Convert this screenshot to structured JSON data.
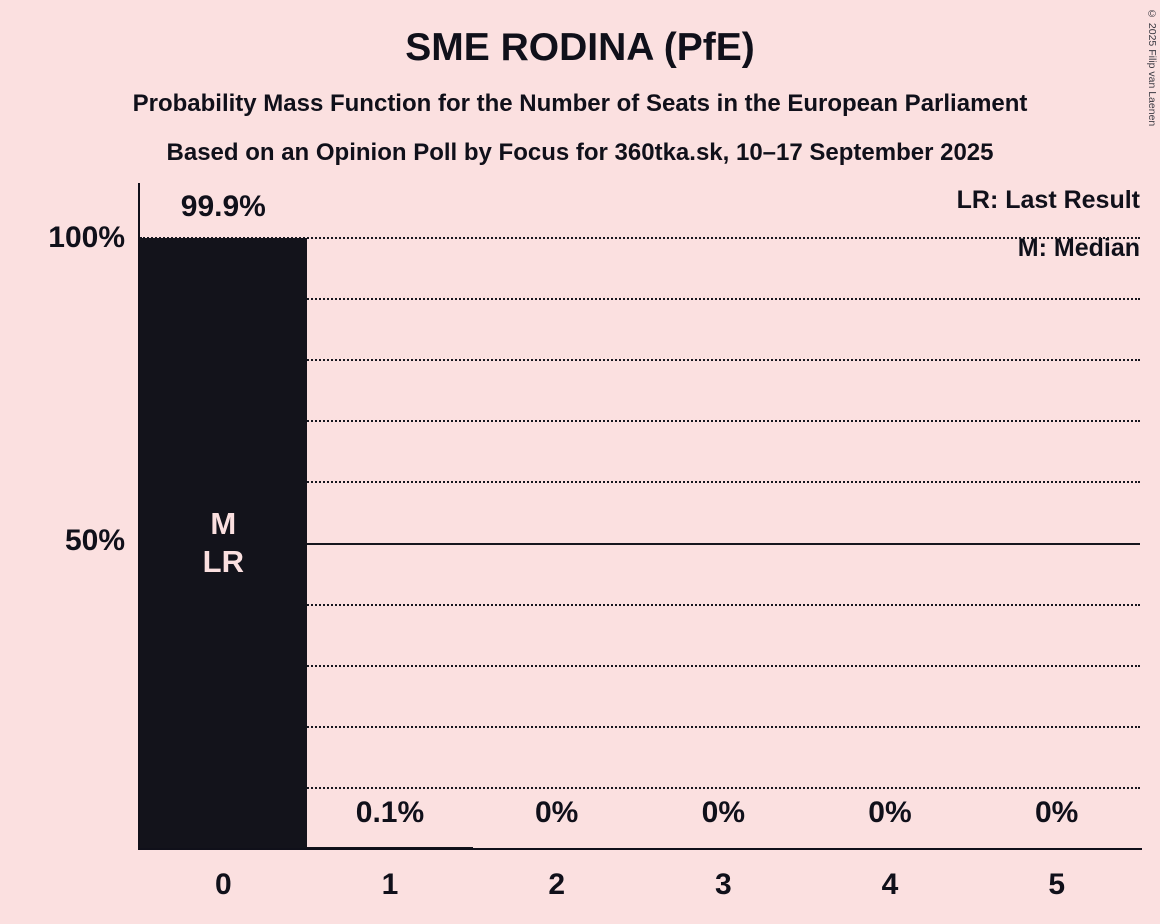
{
  "title": "SME RODINA (PfE)",
  "subtitle1": "Probability Mass Function for the Number of Seats in the European Parliament",
  "subtitle2": "Based on an Opinion Poll by Focus for 360tka.sk, 10–17 September 2025",
  "legend": {
    "lr": "LR: Last Result",
    "m": "M: Median"
  },
  "copyright": "© 2025 Filip van Laenen",
  "colors": {
    "background": "#fbe0e0",
    "bar": "#13131b",
    "text": "#10101a",
    "bar_annotation_text": "#fbe0e0"
  },
  "y_axis": {
    "labels": [
      {
        "text": "100%",
        "value": 100
      },
      {
        "text": "50%",
        "value": 50
      }
    ]
  },
  "chart_data": {
    "type": "bar",
    "title": "SME RODINA (PfE)",
    "xlabel": "",
    "ylabel": "",
    "ylim": [
      0,
      100
    ],
    "categories": [
      "0",
      "1",
      "2",
      "3",
      "4",
      "5"
    ],
    "values": [
      99.9,
      0.1,
      0,
      0,
      0,
      0
    ],
    "value_labels": [
      "99.9%",
      "0.1%",
      "0%",
      "0%",
      "0%",
      "0%"
    ],
    "annotations": [
      [
        "M",
        "LR"
      ],
      [],
      [],
      [],
      [],
      []
    ],
    "gridlines": {
      "dotted_every": 10,
      "solid_at": 50
    },
    "legend_position": "top-right"
  }
}
